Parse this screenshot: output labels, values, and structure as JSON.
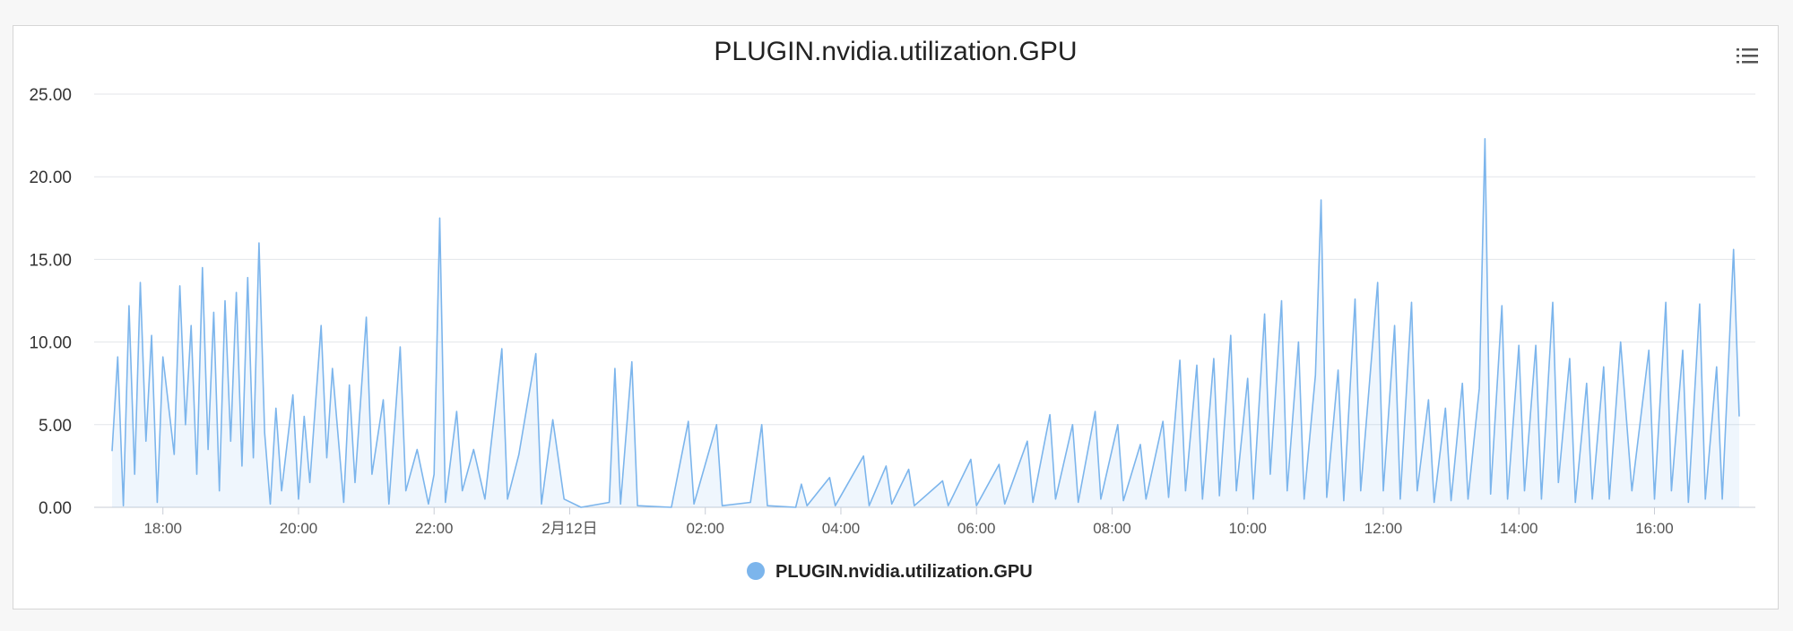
{
  "chart_data": {
    "type": "area",
    "title": "PLUGIN.nvidia.utilization.GPU",
    "xlabel": "",
    "ylabel": "",
    "ylim": [
      0,
      25
    ],
    "yticks": [
      "0.00",
      "5.00",
      "10.00",
      "15.00",
      "20.00",
      "25.00"
    ],
    "xticks": [
      "18:00",
      "20:00",
      "22:00",
      "2月12日",
      "02:00",
      "04:00",
      "06:00",
      "08:00",
      "10:00",
      "12:00",
      "14:00",
      "16:00"
    ],
    "x_range": [
      "17:15",
      "17:15 (next day)"
    ],
    "legend": {
      "position": "bottom",
      "entries": [
        "PLUGIN.nvidia.utilization.GPU"
      ]
    },
    "grid": true,
    "series": [
      {
        "name": "PLUGIN.nvidia.utilization.GPU",
        "color": "#7cb5ec",
        "points": [
          [
            "17:15",
            3.4
          ],
          [
            "17:20",
            9.1
          ],
          [
            "17:25",
            0.1
          ],
          [
            "17:30",
            12.2
          ],
          [
            "17:35",
            2.0
          ],
          [
            "17:40",
            13.6
          ],
          [
            "17:45",
            4.0
          ],
          [
            "17:50",
            10.4
          ],
          [
            "17:55",
            0.3
          ],
          [
            "18:00",
            9.1
          ],
          [
            "18:10",
            3.2
          ],
          [
            "18:15",
            13.4
          ],
          [
            "18:20",
            5.0
          ],
          [
            "18:25",
            11.0
          ],
          [
            "18:30",
            2.0
          ],
          [
            "18:35",
            14.5
          ],
          [
            "18:40",
            3.5
          ],
          [
            "18:45",
            11.8
          ],
          [
            "18:50",
            1.0
          ],
          [
            "18:55",
            12.5
          ],
          [
            "19:00",
            4.0
          ],
          [
            "19:05",
            13.0
          ],
          [
            "19:10",
            2.5
          ],
          [
            "19:15",
            13.9
          ],
          [
            "19:20",
            3.0
          ],
          [
            "19:25",
            16.0
          ],
          [
            "19:30",
            4.5
          ],
          [
            "19:35",
            0.2
          ],
          [
            "19:40",
            6.0
          ],
          [
            "19:45",
            1.0
          ],
          [
            "19:55",
            6.8
          ],
          [
            "20:00",
            0.5
          ],
          [
            "20:05",
            5.5
          ],
          [
            "20:10",
            1.5
          ],
          [
            "20:20",
            11.0
          ],
          [
            "20:25",
            3.0
          ],
          [
            "20:30",
            8.4
          ],
          [
            "20:40",
            0.3
          ],
          [
            "20:45",
            7.4
          ],
          [
            "20:50",
            1.5
          ],
          [
            "21:00",
            11.5
          ],
          [
            "21:05",
            2.0
          ],
          [
            "21:15",
            6.5
          ],
          [
            "21:20",
            0.2
          ],
          [
            "21:30",
            9.7
          ],
          [
            "21:35",
            1.0
          ],
          [
            "21:45",
            3.5
          ],
          [
            "21:55",
            0.2
          ],
          [
            "22:00",
            2.0
          ],
          [
            "22:05",
            17.5
          ],
          [
            "22:10",
            0.3
          ],
          [
            "22:20",
            5.8
          ],
          [
            "22:25",
            1.0
          ],
          [
            "22:35",
            3.5
          ],
          [
            "22:45",
            0.5
          ],
          [
            "23:00",
            9.6
          ],
          [
            "23:05",
            0.5
          ],
          [
            "23:15",
            3.2
          ],
          [
            "23:30",
            9.3
          ],
          [
            "23:35",
            0.2
          ],
          [
            "23:45",
            5.3
          ],
          [
            "23:55",
            0.5
          ],
          [
            "00:10",
            0.0
          ],
          [
            "00:35",
            0.3
          ],
          [
            "00:40",
            8.4
          ],
          [
            "00:45",
            0.2
          ],
          [
            "00:55",
            8.8
          ],
          [
            "01:00",
            0.1
          ],
          [
            "01:30",
            0.0
          ],
          [
            "01:45",
            5.2
          ],
          [
            "01:50",
            0.2
          ],
          [
            "02:10",
            5.0
          ],
          [
            "02:15",
            0.1
          ],
          [
            "02:40",
            0.3
          ],
          [
            "02:50",
            5.0
          ],
          [
            "02:55",
            0.1
          ],
          [
            "03:20",
            0.0
          ],
          [
            "03:25",
            1.4
          ],
          [
            "03:30",
            0.1
          ],
          [
            "03:50",
            1.8
          ],
          [
            "03:55",
            0.1
          ],
          [
            "04:20",
            3.1
          ],
          [
            "04:25",
            0.1
          ],
          [
            "04:40",
            2.5
          ],
          [
            "04:45",
            0.2
          ],
          [
            "05:00",
            2.3
          ],
          [
            "05:05",
            0.1
          ],
          [
            "05:30",
            1.6
          ],
          [
            "05:35",
            0.1
          ],
          [
            "05:55",
            2.9
          ],
          [
            "06:00",
            0.1
          ],
          [
            "06:20",
            2.6
          ],
          [
            "06:25",
            0.2
          ],
          [
            "06:45",
            4.0
          ],
          [
            "06:50",
            0.3
          ],
          [
            "07:05",
            5.6
          ],
          [
            "07:10",
            0.5
          ],
          [
            "07:25",
            5.0
          ],
          [
            "07:30",
            0.3
          ],
          [
            "07:45",
            5.8
          ],
          [
            "07:50",
            0.5
          ],
          [
            "08:05",
            5.0
          ],
          [
            "08:10",
            0.4
          ],
          [
            "08:25",
            3.8
          ],
          [
            "08:30",
            0.5
          ],
          [
            "08:45",
            5.2
          ],
          [
            "08:50",
            0.6
          ],
          [
            "09:00",
            8.9
          ],
          [
            "09:05",
            1.0
          ],
          [
            "09:15",
            8.6
          ],
          [
            "09:20",
            0.5
          ],
          [
            "09:30",
            9.0
          ],
          [
            "09:35",
            0.7
          ],
          [
            "09:45",
            10.4
          ],
          [
            "09:50",
            1.0
          ],
          [
            "10:00",
            7.8
          ],
          [
            "10:05",
            0.5
          ],
          [
            "10:15",
            11.7
          ],
          [
            "10:20",
            2.0
          ],
          [
            "10:30",
            12.5
          ],
          [
            "10:35",
            1.0
          ],
          [
            "10:45",
            10.0
          ],
          [
            "10:50",
            0.5
          ],
          [
            "11:00",
            8.0
          ],
          [
            "11:05",
            18.6
          ],
          [
            "11:10",
            0.6
          ],
          [
            "11:20",
            8.3
          ],
          [
            "11:25",
            0.4
          ],
          [
            "11:35",
            12.6
          ],
          [
            "11:40",
            1.0
          ],
          [
            "11:55",
            13.6
          ],
          [
            "12:00",
            1.0
          ],
          [
            "12:10",
            11.0
          ],
          [
            "12:15",
            0.5
          ],
          [
            "12:25",
            12.4
          ],
          [
            "12:30",
            1.0
          ],
          [
            "12:40",
            6.5
          ],
          [
            "12:45",
            0.3
          ],
          [
            "12:55",
            6.0
          ],
          [
            "13:00",
            0.4
          ],
          [
            "13:10",
            7.5
          ],
          [
            "13:15",
            0.5
          ],
          [
            "13:25",
            7.2
          ],
          [
            "13:30",
            22.3
          ],
          [
            "13:35",
            0.8
          ],
          [
            "13:45",
            12.2
          ],
          [
            "13:50",
            0.5
          ],
          [
            "14:00",
            9.8
          ],
          [
            "14:05",
            1.0
          ],
          [
            "14:15",
            9.8
          ],
          [
            "14:20",
            0.5
          ],
          [
            "14:30",
            12.4
          ],
          [
            "14:35",
            1.5
          ],
          [
            "14:45",
            9.0
          ],
          [
            "14:50",
            0.3
          ],
          [
            "15:00",
            7.5
          ],
          [
            "15:05",
            0.5
          ],
          [
            "15:15",
            8.5
          ],
          [
            "15:20",
            0.5
          ],
          [
            "15:30",
            10.0
          ],
          [
            "15:40",
            1.0
          ],
          [
            "15:55",
            9.5
          ],
          [
            "16:00",
            0.5
          ],
          [
            "16:10",
            12.4
          ],
          [
            "16:15",
            1.0
          ],
          [
            "16:25",
            9.5
          ],
          [
            "16:30",
            0.3
          ],
          [
            "16:40",
            12.3
          ],
          [
            "16:45",
            0.5
          ],
          [
            "16:55",
            8.5
          ],
          [
            "17:00",
            0.5
          ],
          [
            "17:05",
            8.0
          ],
          [
            "17:10",
            15.6
          ],
          [
            "17:15",
            5.5
          ]
        ]
      }
    ]
  }
}
